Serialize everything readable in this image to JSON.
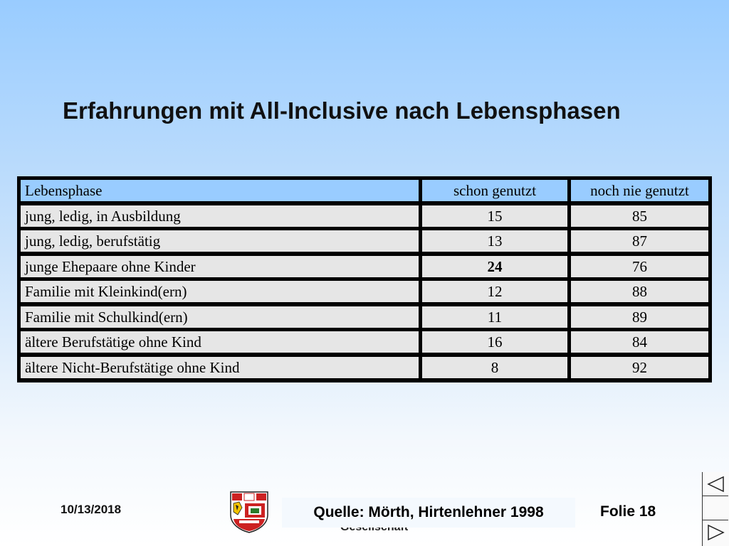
{
  "slide": {
    "title": "Erfahrungen mit All-Inclusive nach Lebensphasen"
  },
  "table": {
    "headers": [
      "Lebensphase",
      "schon genutzt",
      "noch nie genutzt"
    ],
    "rows": [
      {
        "phase": "jung, ledig, in Ausbildung",
        "used": "15",
        "never": "85"
      },
      {
        "phase": "jung, ledig, berufstätig",
        "used": "13",
        "never": "87"
      },
      {
        "phase": "junge Ehepaare ohne Kinder",
        "used": "24",
        "never": "76"
      },
      {
        "phase": "Familie mit Kleinkind(ern)",
        "used": "12",
        "never": "88"
      },
      {
        "phase": "Familie mit Schulkind(ern)",
        "used": "11",
        "never": "89"
      },
      {
        "phase": "ältere Berufstätige ohne Kind",
        "used": "16",
        "never": "84"
      },
      {
        "phase": "ältere Nicht-Berufstätige ohne Kind",
        "used": "8",
        "never": "92"
      }
    ]
  },
  "footer": {
    "date": "10/13/2018",
    "source": "Quelle: Mörth, Hirtenlehner 1998",
    "slide_number": "Folie 18",
    "partial_text": "Gesellschaft"
  },
  "icons": {
    "logo": "coat-of-arms-logo",
    "nav_prev": "triangle-left-icon",
    "nav_next": "triangle-right-icon"
  },
  "colors": {
    "header_row": "#99ccff",
    "cell": "#e6e6e6",
    "table_border": "#000000"
  }
}
